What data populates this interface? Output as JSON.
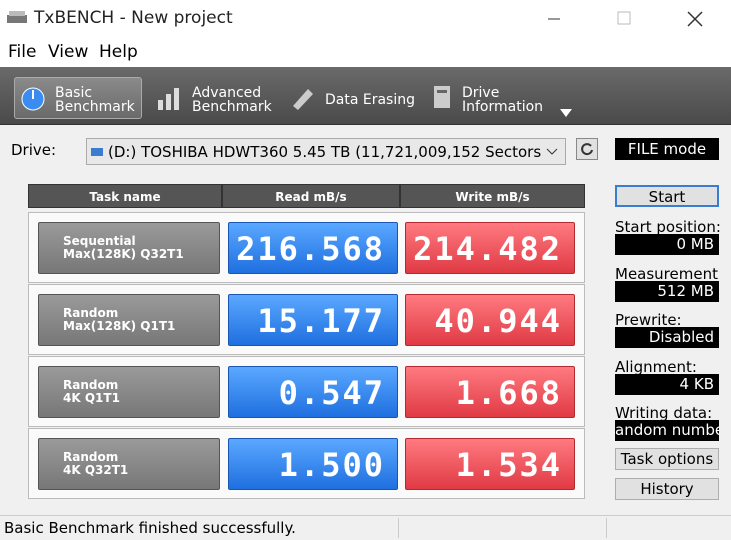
{
  "window": {
    "title": "TxBENCH - New project"
  },
  "menu": [
    "File",
    "View",
    "Help"
  ],
  "toolbar": [
    [
      "Basic",
      "Benchmark"
    ],
    [
      "Advanced",
      "Benchmark"
    ],
    [
      "Data Erasing"
    ],
    [
      "Drive",
      "Information"
    ]
  ],
  "drive": {
    "label": "Drive:",
    "value": "(D:) TOSHIBA HDWT360  5.45 TB (11,721,009,152 Sectors"
  },
  "mode": "FILE mode",
  "table": {
    "headers": [
      "Task name",
      "Read mB/s",
      "Write mB/s"
    ],
    "rows": [
      [
        [
          "Sequential",
          "Max(128K) Q32T1"
        ],
        "216.568",
        "214.482"
      ],
      [
        [
          "Random",
          "Max(128K) Q1T1"
        ],
        "15.177",
        "40.944"
      ],
      [
        [
          "Random",
          "4K Q1T1"
        ],
        "0.547",
        "1.668"
      ],
      [
        [
          "Random",
          "4K Q32T1"
        ],
        "1.500",
        "1.534"
      ]
    ]
  },
  "side": {
    "start": "Start",
    "fields": [
      {
        "label": "Start position:",
        "value": "0 MB"
      },
      {
        "label": "Measurement",
        "value": "512 MB"
      },
      {
        "label": "Prewrite:",
        "value": "Disabled"
      },
      {
        "label": "Alignment:",
        "value": "4 KB"
      },
      {
        "label": "Writing data:",
        "value": "andom numbe"
      }
    ],
    "task_options": "Task options",
    "history": "History"
  },
  "status": "Basic Benchmark finished successfully."
}
